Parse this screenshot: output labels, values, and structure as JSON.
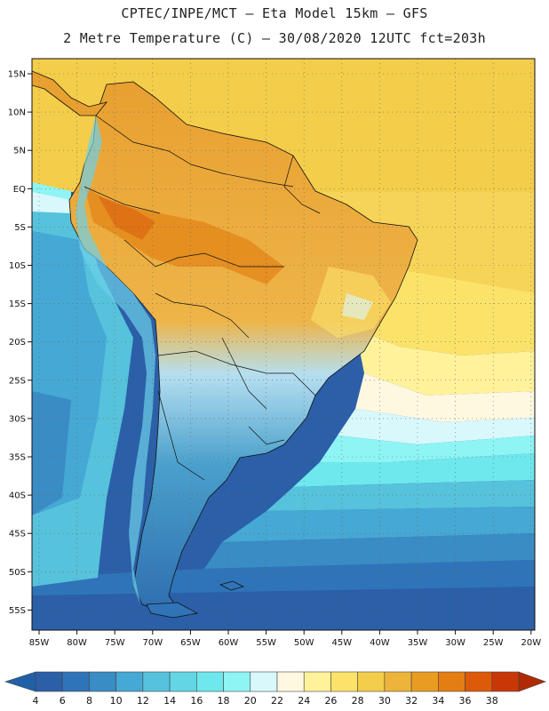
{
  "header": {
    "line1": "CPTEC/INPE/MCT –  Eta Model 15km – GFS",
    "line2": "2 Metre Temperature (C) – 30/08/2020 12UTC fct=203h"
  },
  "map": {
    "region": "South America",
    "projection": "lat-lon",
    "lon_range": [
      -86,
      -19
    ],
    "lat_range": [
      17,
      -58
    ],
    "lat_ticks": [
      "15N",
      "10N",
      "5N",
      "EQ",
      "5S",
      "10S",
      "15S",
      "20S",
      "25S",
      "30S",
      "35S",
      "40S",
      "45S",
      "50S",
      "55S"
    ],
    "lon_ticks": [
      "85W",
      "80W",
      "75W",
      "70W",
      "65W",
      "60W",
      "55W",
      "50W",
      "45W",
      "40W",
      "35W",
      "30W",
      "25W",
      "20W"
    ],
    "gridlines": "dotted"
  },
  "colorbar": {
    "labels": [
      "4",
      "6",
      "8",
      "10",
      "12",
      "14",
      "16",
      "18",
      "20",
      "22",
      "24",
      "26",
      "28",
      "30",
      "32",
      "34",
      "36",
      "38"
    ],
    "colors": [
      "#2b5fa8",
      "#2f74b8",
      "#3a8cc4",
      "#46a8d4",
      "#56c2dc",
      "#62d6e4",
      "#6ee8ec",
      "#8ef4f4",
      "#d8f8fc",
      "#fff8e0",
      "#fff29a",
      "#fbe36a",
      "#f4cd4a",
      "#ecb43a",
      "#e89c22",
      "#e47e12",
      "#dc5a0a",
      "#c83806"
    ],
    "min_color": "#2060a8",
    "max_color": "#b02a04"
  }
}
